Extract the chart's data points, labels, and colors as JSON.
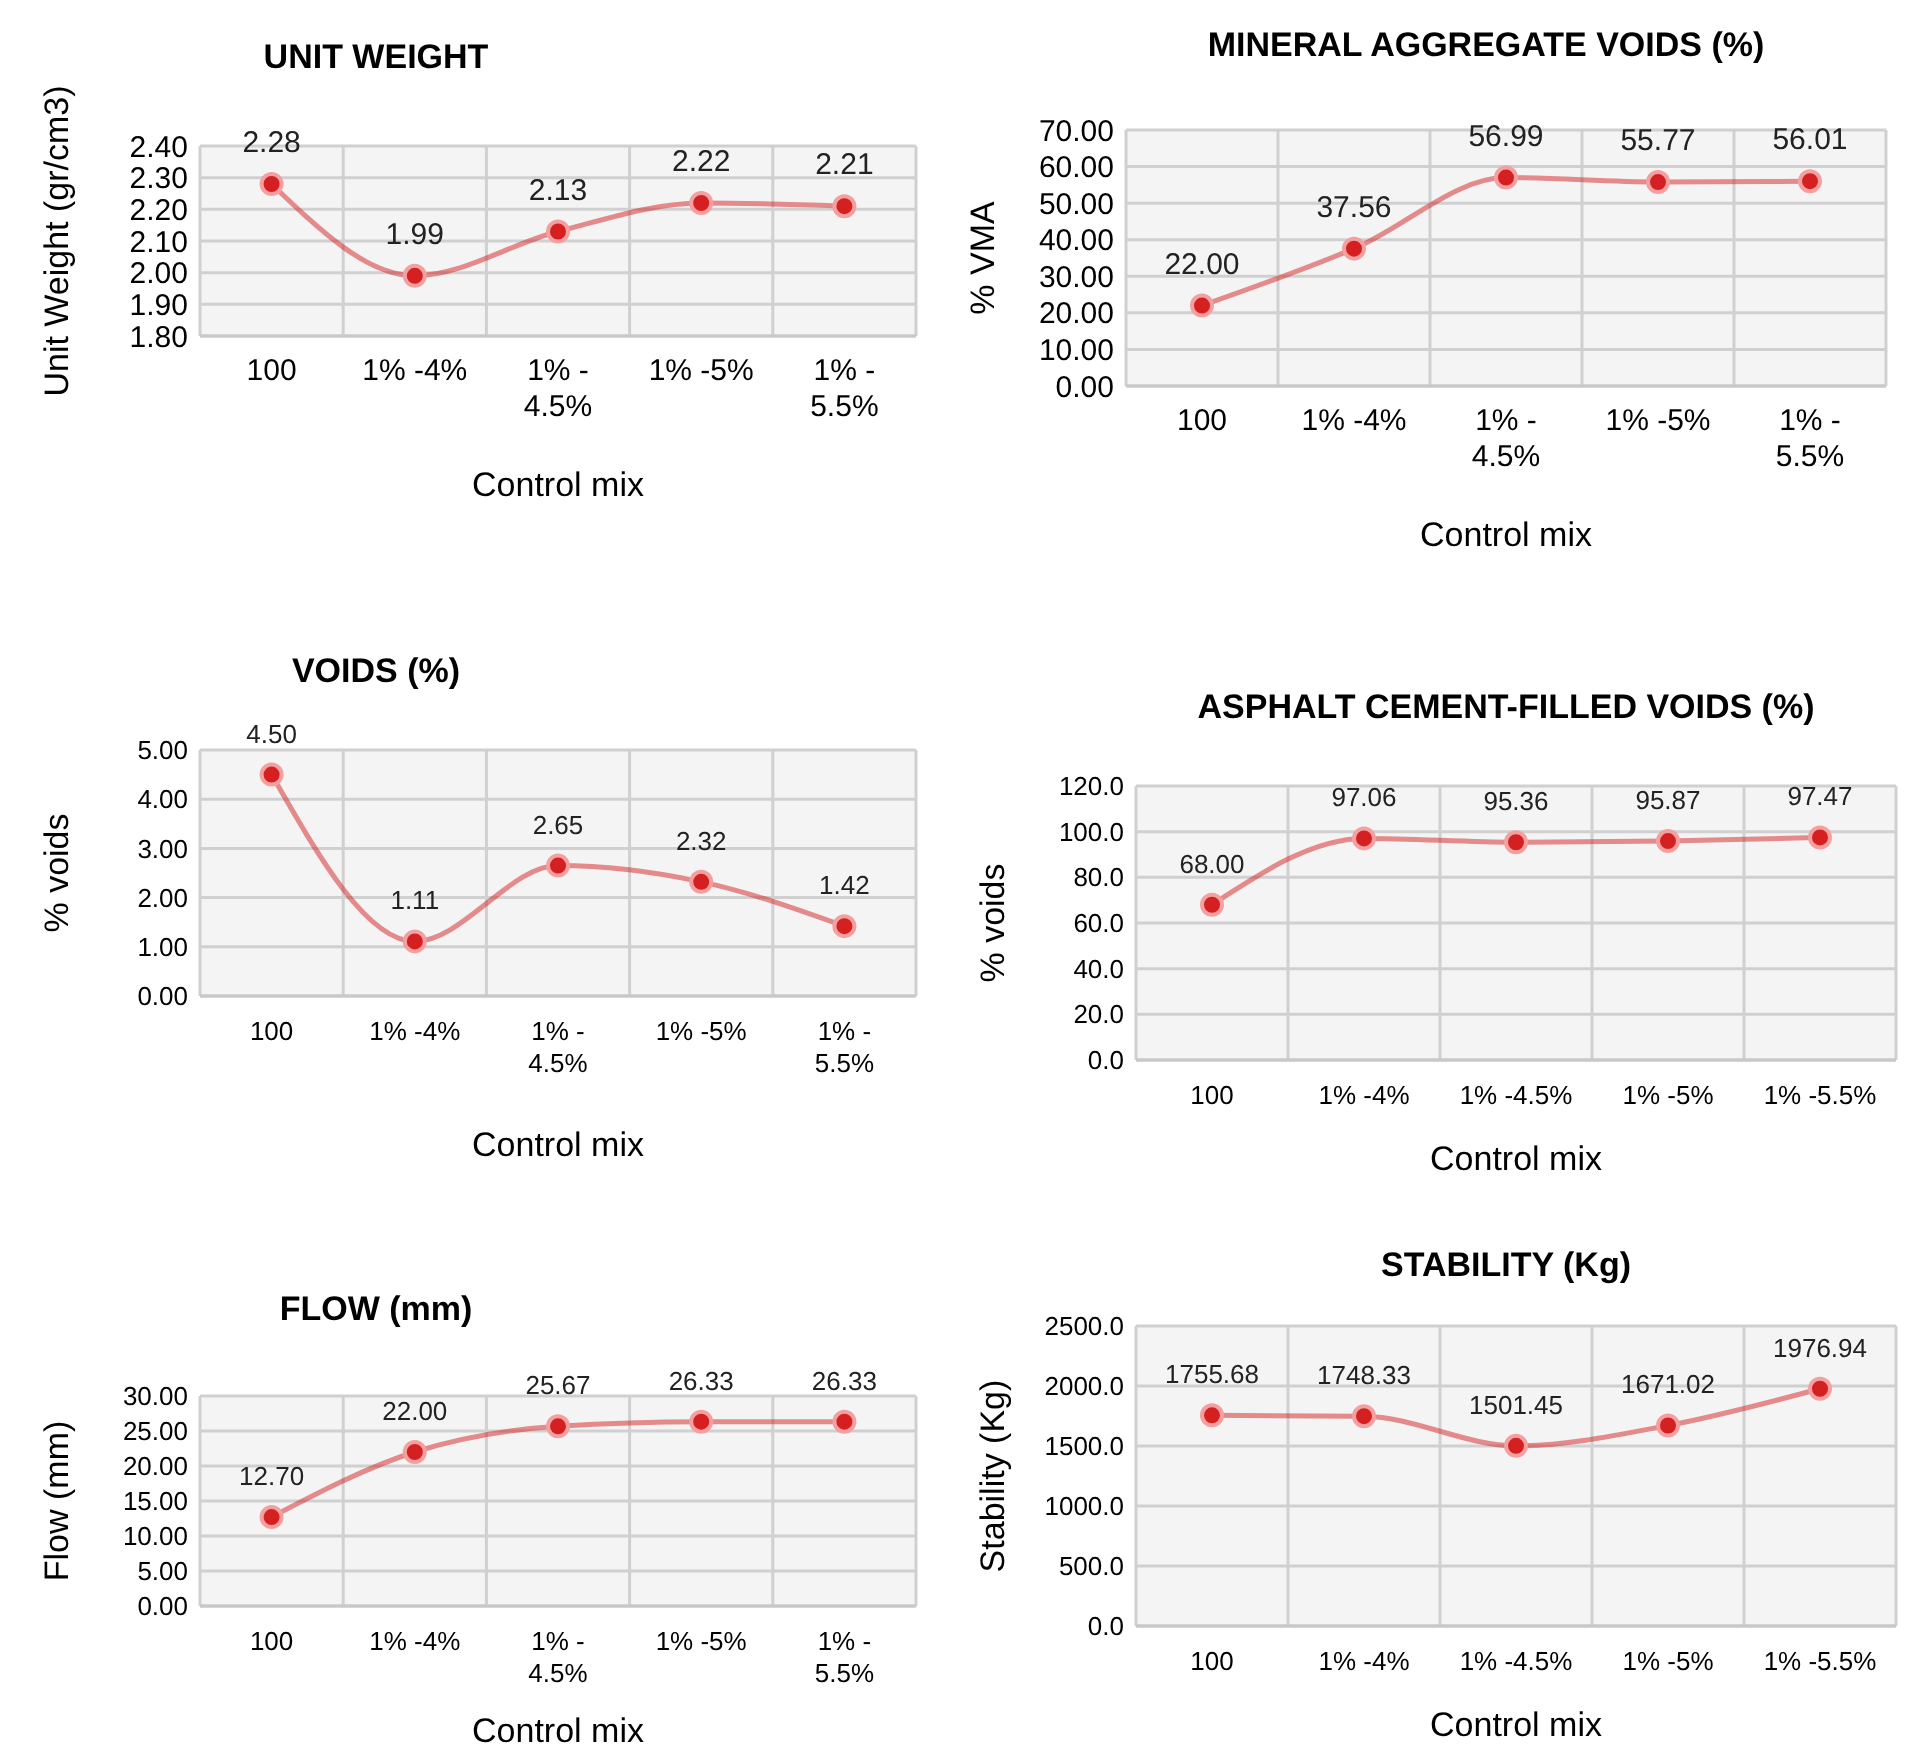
{
  "chart_data": [
    {
      "type": "line",
      "title": "UNIT WEIGHT",
      "ylabel": "Unit Weight (gr/cm3)",
      "xlabel": "Control mix",
      "categories": [
        "100",
        "1% -4%",
        "1% - 4.5%",
        "1% -5%",
        "1% - 5.5%"
      ],
      "series": [
        {
          "color": "#d42020",
          "values": [
            2.28,
            1.99,
            2.13,
            2.22,
            2.21
          ],
          "value_labels": [
            "2.28",
            "1.99",
            "2.13",
            "2.22",
            "2.21"
          ]
        }
      ],
      "ylim": [
        1.8,
        2.4
      ],
      "yticks": [
        {
          "value": 1.8,
          "label": "1.80"
        },
        {
          "value": 1.9,
          "label": "1.90"
        },
        {
          "value": 2.0,
          "label": "2.00"
        },
        {
          "value": 2.1,
          "label": "2.10"
        },
        {
          "value": 2.2,
          "label": "2.20"
        },
        {
          "value": 2.3,
          "label": "2.30"
        },
        {
          "value": 2.4,
          "label": "2.40"
        }
      ],
      "grid": true,
      "marker": "circle"
    },
    {
      "type": "line",
      "title": "MINERAL AGGREGATE VOIDS (%)",
      "ylabel": "% VMA",
      "xlabel": "Control mix",
      "categories": [
        "100",
        "1% -4%",
        "1% - 4.5%",
        "1% -5%",
        "1% - 5.5%"
      ],
      "series": [
        {
          "color": "#d42020",
          "values": [
            22.0,
            37.56,
            56.99,
            55.77,
            56.01
          ],
          "value_labels": [
            "22.00",
            "37.56",
            "56.99",
            "55.77",
            "56.01"
          ]
        }
      ],
      "ylim": [
        0,
        70
      ],
      "yticks": [
        {
          "value": 0,
          "label": "0.00"
        },
        {
          "value": 10,
          "label": "10.00"
        },
        {
          "value": 20,
          "label": "20.00"
        },
        {
          "value": 30,
          "label": "30.00"
        },
        {
          "value": 40,
          "label": "40.00"
        },
        {
          "value": 50,
          "label": "50.00"
        },
        {
          "value": 60,
          "label": "60.00"
        },
        {
          "value": 70,
          "label": "70.00"
        }
      ],
      "grid": true,
      "marker": "circle"
    },
    {
      "type": "line",
      "title": "VOIDS (%)",
      "ylabel": "% voids",
      "xlabel": "Control mix",
      "categories": [
        "100",
        "1% -4%",
        "1% - 4.5%",
        "1% -5%",
        "1% - 5.5%"
      ],
      "series": [
        {
          "color": "#d42020",
          "values": [
            4.5,
            1.11,
            2.65,
            2.32,
            1.42
          ],
          "value_labels": [
            "4.50",
            "1.11",
            "2.65",
            "2.32",
            "1.42"
          ]
        }
      ],
      "ylim": [
        0,
        5
      ],
      "yticks": [
        {
          "value": 0,
          "label": "0.00"
        },
        {
          "value": 1,
          "label": "1.00"
        },
        {
          "value": 2,
          "label": "2.00"
        },
        {
          "value": 3,
          "label": "3.00"
        },
        {
          "value": 4,
          "label": "4.00"
        },
        {
          "value": 5,
          "label": "5.00"
        }
      ],
      "grid": true,
      "marker": "circle"
    },
    {
      "type": "line",
      "title": "ASPHALT CEMENT-FILLED VOIDS (%)",
      "ylabel": "%  voids",
      "xlabel": "Control mix",
      "categories": [
        "100",
        "1% -4%",
        "1% -4.5%",
        "1% -5%",
        "1% -5.5%"
      ],
      "series": [
        {
          "color": "#d42020",
          "values": [
            68.0,
            97.06,
            95.36,
            95.87,
            97.47
          ],
          "value_labels": [
            "68.00",
            "97.06",
            "95.36",
            "95.87",
            "97.47"
          ]
        }
      ],
      "ylim": [
        0,
        120
      ],
      "yticks": [
        {
          "value": 0,
          "label": "0.0"
        },
        {
          "value": 20,
          "label": "20.0"
        },
        {
          "value": 40,
          "label": "40.0"
        },
        {
          "value": 60,
          "label": "60.0"
        },
        {
          "value": 80,
          "label": "80.0"
        },
        {
          "value": 100,
          "label": "100.0"
        },
        {
          "value": 120,
          "label": "120.0"
        }
      ],
      "grid": true,
      "marker": "circle"
    },
    {
      "type": "line",
      "title": "FLOW (mm)",
      "ylabel": "Flow (mm)",
      "xlabel": "Control mix",
      "categories": [
        "100",
        "1% -4%",
        "1% - 4.5%",
        "1% -5%",
        "1% - 5.5%"
      ],
      "series": [
        {
          "color": "#d42020",
          "values": [
            12.7,
            22.0,
            25.67,
            26.33,
            26.33
          ],
          "value_labels": [
            "12.70",
            "22.00",
            "25.67",
            "26.33",
            "26.33"
          ]
        }
      ],
      "ylim": [
        0,
        30
      ],
      "yticks": [
        {
          "value": 0,
          "label": "0.00"
        },
        {
          "value": 5,
          "label": "5.00"
        },
        {
          "value": 10,
          "label": "10.00"
        },
        {
          "value": 15,
          "label": "15.00"
        },
        {
          "value": 20,
          "label": "20.00"
        },
        {
          "value": 25,
          "label": "25.00"
        },
        {
          "value": 30,
          "label": "30.00"
        }
      ],
      "grid": true,
      "marker": "circle"
    },
    {
      "type": "line",
      "title": "STABILITY (Kg)",
      "ylabel": "Stability  (Kg)",
      "xlabel": "Control mix",
      "categories": [
        "100",
        "1% -4%",
        "1% -4.5%",
        "1% -5%",
        "1% -5.5%"
      ],
      "series": [
        {
          "color": "#d42020",
          "values": [
            1755.68,
            1748.33,
            1501.45,
            1671.02,
            1976.94
          ],
          "value_labels": [
            "1755.68",
            "1748.33",
            "1501.45",
            "1671.02",
            "1976.94"
          ]
        }
      ],
      "ylim": [
        0,
        2500
      ],
      "yticks": [
        {
          "value": 0,
          "label": "0.0"
        },
        {
          "value": 500,
          "label": "500.0"
        },
        {
          "value": 1000,
          "label": "1000.0"
        },
        {
          "value": 1500,
          "label": "1500.0"
        },
        {
          "value": 2000,
          "label": "2000.0"
        },
        {
          "value": 2500,
          "label": "2500.0"
        }
      ],
      "grid": true,
      "marker": "circle"
    }
  ]
}
